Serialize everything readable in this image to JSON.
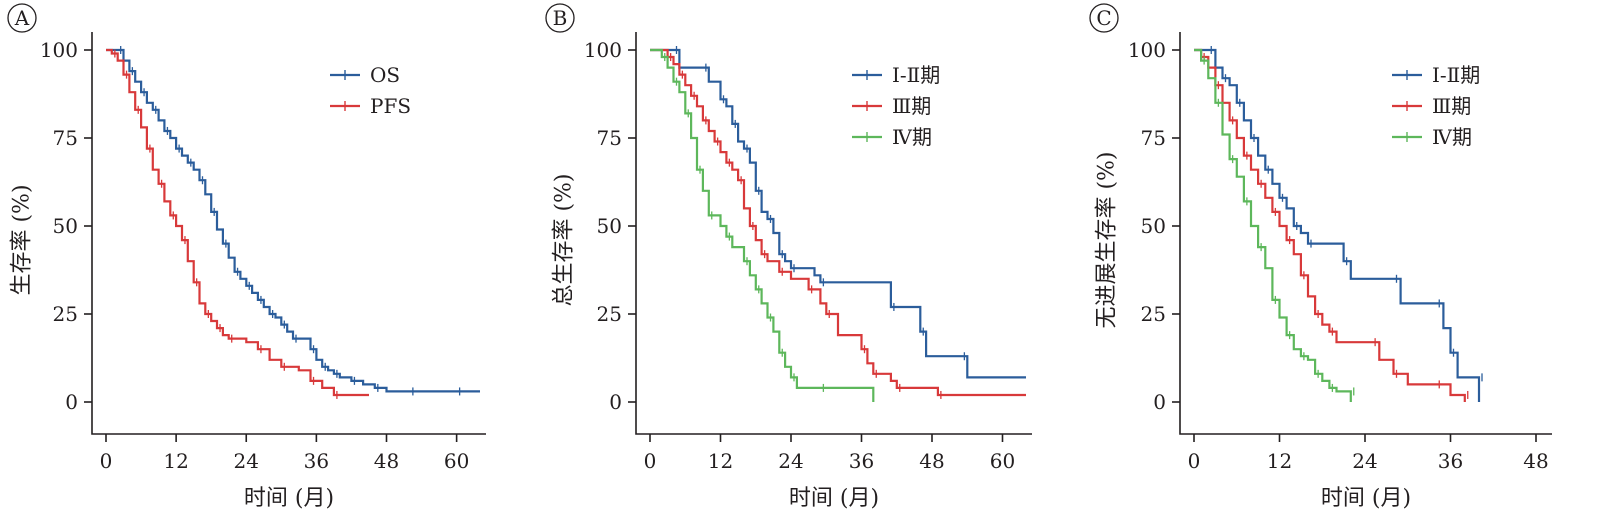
{
  "colors": {
    "blue": "#2b5d9b",
    "red": "#d8393a",
    "green": "#5db75b",
    "axis": "#231f20"
  },
  "chart_data": [
    {
      "panel_label": "A",
      "type": "line",
      "step": true,
      "xlabel": "时间 (月)",
      "ylabel": "生存率 (%)",
      "xlim": [
        0,
        64
      ],
      "ylim": [
        0,
        100
      ],
      "xticks": [
        "0",
        "12",
        "24",
        "36",
        "48",
        "60"
      ],
      "yticks": [
        "0",
        "25",
        "50",
        "75",
        "100"
      ],
      "legend_position": "top-right",
      "series": [
        {
          "name": "OS",
          "color": "#2b5d9b",
          "points": [
            [
              0,
              100
            ],
            [
              2,
              100
            ],
            [
              3,
              97
            ],
            [
              4,
              94
            ],
            [
              5,
              91
            ],
            [
              6,
              88
            ],
            [
              7,
              85
            ],
            [
              8,
              83
            ],
            [
              9,
              80
            ],
            [
              10,
              77
            ],
            [
              11,
              75
            ],
            [
              12,
              72
            ],
            [
              13,
              70
            ],
            [
              14,
              68
            ],
            [
              15,
              66
            ],
            [
              16,
              63
            ],
            [
              17,
              59
            ],
            [
              18,
              54
            ],
            [
              19,
              49
            ],
            [
              20,
              45
            ],
            [
              21,
              41
            ],
            [
              22,
              37
            ],
            [
              23,
              35
            ],
            [
              24,
              33
            ],
            [
              25,
              31
            ],
            [
              26,
              29
            ],
            [
              27,
              27
            ],
            [
              28,
              25
            ],
            [
              29,
              24
            ],
            [
              30,
              22
            ],
            [
              31,
              20
            ],
            [
              32,
              18
            ],
            [
              34,
              18
            ],
            [
              35,
              15
            ],
            [
              36,
              12
            ],
            [
              37,
              10
            ],
            [
              38,
              9
            ],
            [
              39,
              8
            ],
            [
              40,
              7
            ],
            [
              42,
              6
            ],
            [
              44,
              5
            ],
            [
              46,
              4
            ],
            [
              48,
              3
            ],
            [
              52,
              3
            ],
            [
              56,
              3
            ],
            [
              60,
              3
            ],
            [
              64,
              3
            ]
          ]
        },
        {
          "name": "PFS",
          "color": "#d8393a",
          "points": [
            [
              0,
              100
            ],
            [
              1,
              99
            ],
            [
              2,
              97
            ],
            [
              3,
              93
            ],
            [
              4,
              88
            ],
            [
              5,
              83
            ],
            [
              6,
              78
            ],
            [
              7,
              72
            ],
            [
              8,
              66
            ],
            [
              9,
              62
            ],
            [
              10,
              57
            ],
            [
              11,
              53
            ],
            [
              12,
              50
            ],
            [
              13,
              46
            ],
            [
              14,
              40
            ],
            [
              15,
              34
            ],
            [
              16,
              28
            ],
            [
              17,
              25
            ],
            [
              18,
              23
            ],
            [
              19,
              21
            ],
            [
              20,
              19
            ],
            [
              21,
              18
            ],
            [
              24,
              17
            ],
            [
              26,
              15
            ],
            [
              28,
              12
            ],
            [
              30,
              10
            ],
            [
              33,
              9
            ],
            [
              35,
              6
            ],
            [
              37,
              4
            ],
            [
              39,
              2
            ],
            [
              42,
              2
            ],
            [
              45,
              2
            ]
          ]
        }
      ]
    },
    {
      "panel_label": "B",
      "type": "line",
      "step": true,
      "xlabel": "时间 (月)",
      "ylabel": "总生存率 (%)",
      "xlim": [
        0,
        64
      ],
      "ylim": [
        0,
        100
      ],
      "xticks": [
        "0",
        "12",
        "24",
        "36",
        "48",
        "60"
      ],
      "yticks": [
        "0",
        "25",
        "50",
        "75",
        "100"
      ],
      "legend_position": "top-right",
      "series": [
        {
          "name": "Ⅰ-Ⅱ期",
          "color": "#2b5d9b",
          "points": [
            [
              0,
              100
            ],
            [
              4,
              100
            ],
            [
              5,
              95
            ],
            [
              9,
              95
            ],
            [
              10,
              91
            ],
            [
              12,
              86
            ],
            [
              13,
              84
            ],
            [
              14,
              79
            ],
            [
              15,
              74
            ],
            [
              16,
              72
            ],
            [
              17,
              68
            ],
            [
              18,
              60
            ],
            [
              19,
              54
            ],
            [
              20,
              52
            ],
            [
              21,
              48
            ],
            [
              22,
              42
            ],
            [
              23,
              40
            ],
            [
              24,
              38
            ],
            [
              28,
              36
            ],
            [
              29,
              34
            ],
            [
              40,
              34
            ],
            [
              41,
              27
            ],
            [
              45,
              27
            ],
            [
              46,
              20
            ],
            [
              47,
              13
            ],
            [
              53,
              13
            ],
            [
              54,
              7
            ],
            [
              64,
              7
            ]
          ]
        },
        {
          "name": "Ⅲ期",
          "color": "#d8393a",
          "points": [
            [
              0,
              100
            ],
            [
              3,
              98
            ],
            [
              4,
              96
            ],
            [
              5,
              93
            ],
            [
              6,
              90
            ],
            [
              7,
              87
            ],
            [
              8,
              84
            ],
            [
              9,
              80
            ],
            [
              10,
              77
            ],
            [
              11,
              74
            ],
            [
              12,
              71
            ],
            [
              13,
              68
            ],
            [
              14,
              66
            ],
            [
              15,
              63
            ],
            [
              16,
              55
            ],
            [
              17,
              50
            ],
            [
              18,
              46
            ],
            [
              19,
              42
            ],
            [
              20,
              40
            ],
            [
              22,
              37
            ],
            [
              24,
              35
            ],
            [
              27,
              32
            ],
            [
              29,
              28
            ],
            [
              30,
              25
            ],
            [
              32,
              19
            ],
            [
              36,
              15
            ],
            [
              37,
              11
            ],
            [
              38,
              8
            ],
            [
              41,
              6
            ],
            [
              42,
              4
            ],
            [
              48,
              4
            ],
            [
              49,
              2
            ],
            [
              64,
              2
            ]
          ]
        },
        {
          "name": "Ⅳ期",
          "color": "#5db75b",
          "points": [
            [
              0,
              100
            ],
            [
              2,
              98
            ],
            [
              3,
              95
            ],
            [
              4,
              91
            ],
            [
              5,
              88
            ],
            [
              6,
              82
            ],
            [
              7,
              75
            ],
            [
              8,
              66
            ],
            [
              9,
              60
            ],
            [
              10,
              53
            ],
            [
              12,
              50
            ],
            [
              13,
              47
            ],
            [
              14,
              44
            ],
            [
              16,
              40
            ],
            [
              17,
              36
            ],
            [
              18,
              32
            ],
            [
              19,
              28
            ],
            [
              20,
              24
            ],
            [
              21,
              20
            ],
            [
              22,
              14
            ],
            [
              23,
              10
            ],
            [
              24,
              7
            ],
            [
              25,
              4
            ],
            [
              29,
              4
            ],
            [
              37,
              4
            ],
            [
              38,
              0
            ]
          ]
        }
      ]
    },
    {
      "panel_label": "C",
      "type": "line",
      "step": true,
      "xlabel": "时间 (月)",
      "ylabel": "无进展生存率 (%)",
      "xlim": [
        0,
        48
      ],
      "ylim": [
        0,
        100
      ],
      "xticks": [
        "0",
        "12",
        "24",
        "36",
        "48"
      ],
      "yticks": [
        "0",
        "25",
        "50",
        "75",
        "100"
      ],
      "legend_position": "top-right",
      "series": [
        {
          "name": "Ⅰ-Ⅱ期",
          "color": "#2b5d9b",
          "points": [
            [
              0,
              100
            ],
            [
              2,
              100
            ],
            [
              3,
              95
            ],
            [
              4,
              92
            ],
            [
              5,
              90
            ],
            [
              6,
              85
            ],
            [
              7,
              80
            ],
            [
              8,
              75
            ],
            [
              9,
              70
            ],
            [
              10,
              66
            ],
            [
              11,
              62
            ],
            [
              12,
              58
            ],
            [
              13,
              55
            ],
            [
              14,
              50
            ],
            [
              15,
              48
            ],
            [
              16,
              45
            ],
            [
              20,
              45
            ],
            [
              21,
              40
            ],
            [
              22,
              35
            ],
            [
              28,
              35
            ],
            [
              29,
              28
            ],
            [
              34,
              28
            ],
            [
              35,
              21
            ],
            [
              36,
              14
            ],
            [
              37,
              7
            ],
            [
              40,
              7
            ],
            [
              40,
              0
            ]
          ]
        },
        {
          "name": "Ⅲ期",
          "color": "#d8393a",
          "points": [
            [
              0,
              100
            ],
            [
              1,
              98
            ],
            [
              2,
              95
            ],
            [
              3,
              90
            ],
            [
              4,
              85
            ],
            [
              5,
              80
            ],
            [
              6,
              75
            ],
            [
              7,
              70
            ],
            [
              8,
              66
            ],
            [
              9,
              62
            ],
            [
              10,
              58
            ],
            [
              11,
              54
            ],
            [
              12,
              50
            ],
            [
              13,
              46
            ],
            [
              14,
              42
            ],
            [
              15,
              36
            ],
            [
              16,
              30
            ],
            [
              17,
              25
            ],
            [
              18,
              22
            ],
            [
              19,
              20
            ],
            [
              20,
              17
            ],
            [
              25,
              17
            ],
            [
              26,
              12
            ],
            [
              28,
              8
            ],
            [
              30,
              5
            ],
            [
              34,
              5
            ],
            [
              36,
              2
            ],
            [
              38,
              2
            ],
            [
              38,
              0
            ]
          ]
        },
        {
          "name": "Ⅳ期",
          "color": "#5db75b",
          "points": [
            [
              0,
              100
            ],
            [
              1,
              97
            ],
            [
              2,
              92
            ],
            [
              3,
              85
            ],
            [
              4,
              76
            ],
            [
              5,
              69
            ],
            [
              6,
              64
            ],
            [
              7,
              57
            ],
            [
              8,
              50
            ],
            [
              9,
              44
            ],
            [
              10,
              38
            ],
            [
              11,
              29
            ],
            [
              12,
              24
            ],
            [
              13,
              19
            ],
            [
              14,
              15
            ],
            [
              15,
              13
            ],
            [
              16,
              12
            ],
            [
              17,
              8
            ],
            [
              18,
              6
            ],
            [
              19,
              4
            ],
            [
              20,
              3
            ],
            [
              22,
              3
            ],
            [
              22,
              0
            ]
          ]
        }
      ]
    }
  ]
}
